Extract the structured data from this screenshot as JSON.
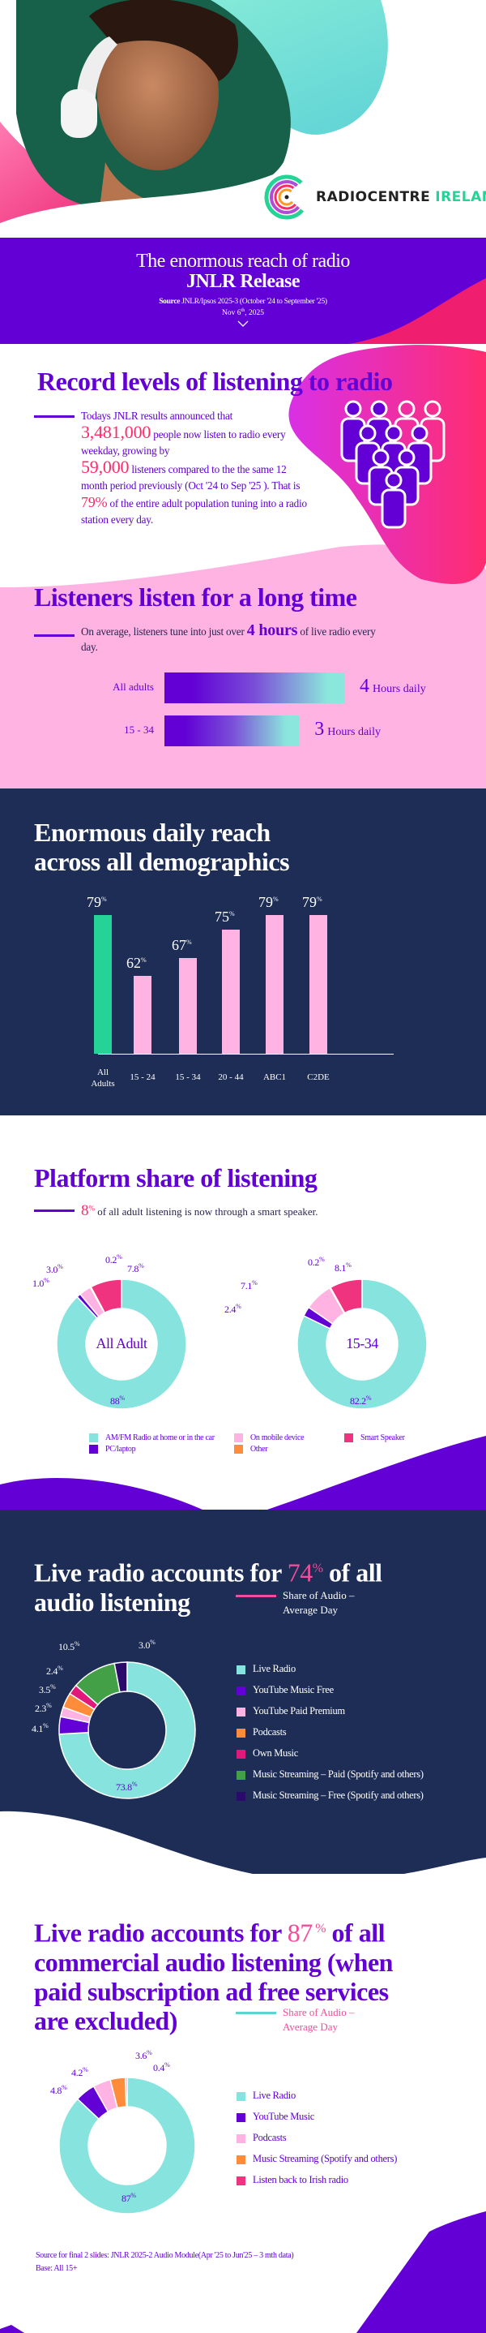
{
  "brand": {
    "name_1": "RADIOCENTRE",
    "name_2": "IRELAND"
  },
  "banner": {
    "title": "The enormous reach of radio",
    "subtitle": "JNLR Release",
    "source_label": "Source",
    "source_text": " JNLR/Ipsos 2025-3 (October '24 to September '25)",
    "date": "Nov 6",
    "date_sup": "th",
    "date_year": ", 2025",
    "chevron_icon": "chevron-down-icon"
  },
  "record": {
    "title": "Record levels of listening to radio",
    "p1": "Todays JNLR results announced that",
    "n1": "3,481,000",
    "p2": " people now listen to radio every weekday, growing by",
    "n2": "59,000",
    "p3": " listeners compared to the the same 12 month period previously (Oct '24 to Sep '25 ). That is ",
    "n3": "79%",
    "p4": " of the entire adult population tuning into a radio station every day.",
    "icon": "people-group-icon"
  },
  "listen": {
    "title": "Listeners listen for a long time",
    "text_pre": "On average, listeners tune into just over ",
    "highlight": "4 hours",
    "text_post": " of live radio every day.",
    "rows": [
      {
        "label": "All adults",
        "hours": 4,
        "value": "4",
        "unit": "Hours daily"
      },
      {
        "label": "15 - 34",
        "hours": 3,
        "value": "3",
        "unit": "Hours daily"
      }
    ]
  },
  "reach": {
    "title_line1": "Enormous daily reach",
    "title_line2": "across all demographics"
  },
  "platform": {
    "title": "Platform share of listening",
    "pct": "8",
    "pct_sup": "%",
    "text": " of all adult listening is now through a smart speaker.",
    "legend": [
      "AM/FM Radio at home or in the car",
      "PC/laptop",
      "On mobile device",
      "Other",
      "Smart Speaker"
    ]
  },
  "audio": {
    "title_pre": "Live radio accounts for ",
    "pct": "74",
    "pct_sup": "%",
    "title_post_lines": [
      " of all",
      "audio listening"
    ],
    "note": "Share of Audio – Average Day"
  },
  "commercial": {
    "title_pre": "Live radio accounts for ",
    "pct": "87",
    "pct_sup": " %",
    "title_post_lines": [
      " of all",
      "commercial audio listening (when",
      "paid subscription ad free services",
      "are excluded)"
    ],
    "note": "Share of Audio – Average Day",
    "source": "Source for final 2 slides: JNLR 2025-2 Audio Module(Apr '25 to Jun'25 – 3 mth data)",
    "base": "Base: All 15+"
  },
  "colors": {
    "purple": "#6200d6",
    "navy": "#1d2d55",
    "pink": "#ffb3e2",
    "hot_pink": "#ff2a6a",
    "teal": "#86e3dd",
    "green": "#26d396",
    "orange": "#ff8c3a",
    "magenta": "#f0337e",
    "streaming_green": "#43a047",
    "dark_purple": "#2a0a6a"
  },
  "chart_data": [
    {
      "type": "bar",
      "title": "Enormous daily reach across all demographics",
      "categories": [
        "All Adults",
        "15 - 24",
        "15 - 34",
        "20 - 44",
        "ABC1",
        "C2DE"
      ],
      "values": [
        79,
        62,
        67,
        75,
        79,
        79
      ],
      "unit": "%",
      "bar_colors": [
        "#26d396",
        "#ffb3e2",
        "#ffb3e2",
        "#ffb3e2",
        "#ffb3e2",
        "#ffb3e2"
      ],
      "ylim": [
        40,
        80
      ],
      "grid": false
    },
    {
      "type": "pie",
      "center_label": "All Adult",
      "categories": [
        "AM/FM Radio at home or in the car",
        "PC/laptop",
        "On mobile device",
        "Other",
        "Smart Speaker"
      ],
      "values": [
        88,
        1.0,
        3.0,
        0.2,
        7.8
      ],
      "labels": [
        "88",
        "1.0",
        "3.0",
        "0.2",
        "7.8"
      ],
      "colors": [
        "#86e3dd",
        "#6200d6",
        "#ffb3e2",
        "#ff8c3a",
        "#f0337e"
      ]
    },
    {
      "type": "pie",
      "center_label": "15-34",
      "categories": [
        "AM/FM Radio at home or in the car",
        "PC/laptop",
        "On mobile device",
        "Other",
        "Smart Speaker"
      ],
      "values": [
        82.2,
        2.4,
        7.1,
        0.2,
        8.1
      ],
      "labels": [
        "82.2",
        "2.4",
        "7.1",
        "0.2",
        "8.1"
      ],
      "colors": [
        "#86e3dd",
        "#6200d6",
        "#ffb3e2",
        "#ff8c3a",
        "#f0337e"
      ]
    },
    {
      "type": "pie",
      "categories": [
        "Live Radio",
        "YouTube Music Free",
        "YouTube Paid Premium",
        "Podcasts",
        "Own Music",
        "Music Streaming – Paid (Spotify and others)",
        "Music Streaming – Free (Spotify and others)"
      ],
      "values": [
        73.8,
        4.1,
        2.3,
        3.5,
        2.4,
        10.5,
        3.0
      ],
      "labels": [
        "73.8",
        "4.1",
        "2.3",
        "3.5",
        "2.4",
        "10.5",
        "3.0"
      ],
      "colors": [
        "#86e3dd",
        "#6200d6",
        "#ffb3e2",
        "#ff8c3a",
        "#e0197a",
        "#43a047",
        "#2a0a6a"
      ]
    },
    {
      "type": "pie",
      "categories": [
        "Live Radio",
        "YouTube Music",
        "Podcasts",
        "Music Streaming (Spotify and others)",
        "Listen back to Irish radio"
      ],
      "values": [
        87,
        4.8,
        4.2,
        3.6,
        0.4
      ],
      "labels": [
        "87",
        "4.8",
        "4.2",
        "3.6",
        "0.4"
      ],
      "colors": [
        "#86e3dd",
        "#6200d6",
        "#ffb3e2",
        "#ff8c3a",
        "#f0337e"
      ]
    }
  ]
}
